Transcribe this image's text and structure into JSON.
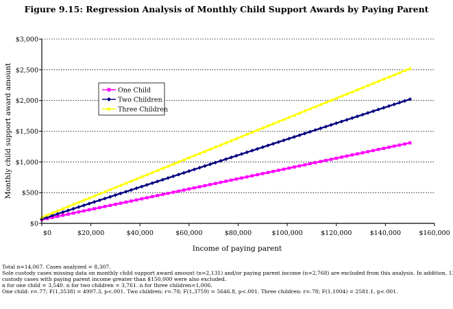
{
  "figure_title": "Figure 9.15:  Regression Analysis of Monthly Child Support Awards by Paying Parent",
  "chart_data": {
    "type": "line",
    "xlabel": "Income of paying parent",
    "ylabel": "Monthly child support award amount",
    "xlim": [
      0,
      160000
    ],
    "ylim": [
      0,
      3000
    ],
    "x_ticks": [
      "$0",
      "$20,000",
      "$40,000",
      "$60,000",
      "$80,000",
      "$100,000",
      "$120,000",
      "$140,000",
      "$160,000"
    ],
    "y_ticks": [
      "$0",
      "$500",
      "$1,000",
      "$1,500",
      "$2,000",
      "$2,500",
      "$3,000"
    ],
    "grid": "horizontal dotted",
    "legend_position": "upper-left inside plot",
    "series": [
      {
        "name": "One Child",
        "color": "#ff00ff",
        "marker": "square",
        "x": [
          0,
          150000
        ],
        "y": [
          60,
          1310
        ]
      },
      {
        "name": "Two Children",
        "color": "#000080",
        "marker": "diamond",
        "x": [
          0,
          150000
        ],
        "y": [
          70,
          2020
        ]
      },
      {
        "name": "Three Children",
        "color": "#ffff00",
        "marker": "triangle",
        "x": [
          0,
          150000
        ],
        "y": [
          100,
          2520
        ]
      }
    ]
  },
  "notes": [
    "Total n=14,067.  Cases analyzed = 8,307.",
    "Sole custody cases missing data on monthly child support award amount (n=2,131) and/or paying parent income (n=2,768) are excluded from this analysis.  In addition, 139 sole",
    "custody cases with paying parent income greater than $150,000 were also excluded.",
    " n for one child = 3,540.  n for two children = 3,761.  n for three children=1,006.",
    "One child: r=.77; F(1,3538) = 4997.3, p<.001.  Two children: r=.78; F(1,3759) = 5646.8, p<.001.  Three children: r=.78; F(1,1004) = 2581.1, p<.001."
  ]
}
